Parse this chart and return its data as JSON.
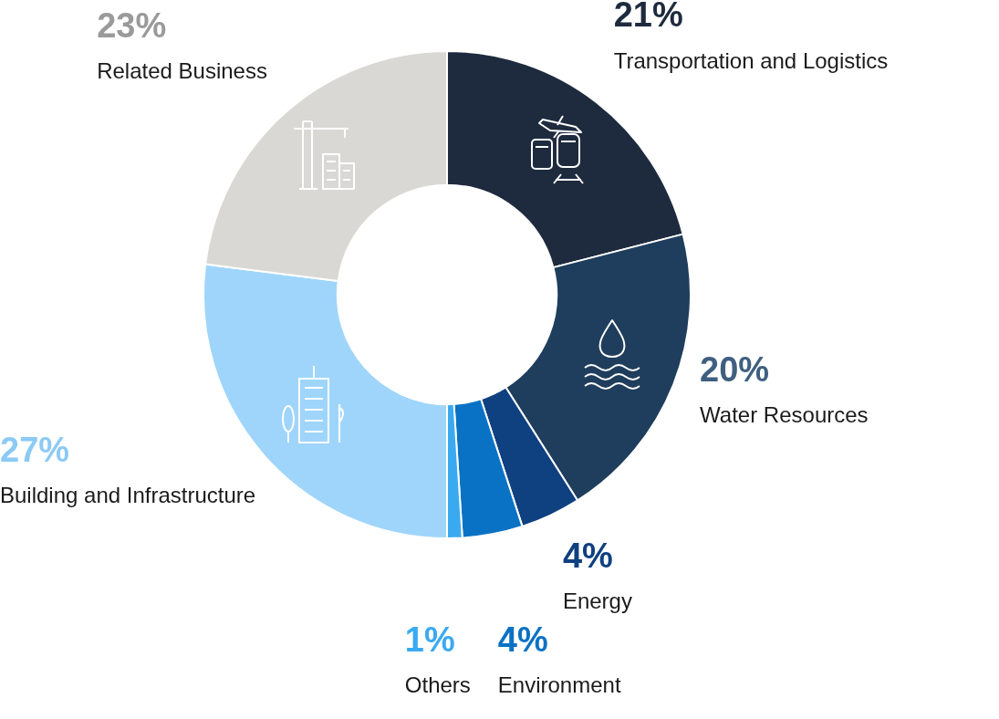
{
  "chart_data": {
    "type": "donut",
    "categories": [
      "Transportation and Logistics",
      "Water Resources",
      "Energy",
      "Environment",
      "Others",
      "Building and Infrastructure",
      "Related Business"
    ],
    "values": [
      21,
      20,
      4,
      4,
      1,
      27,
      23
    ],
    "colors": [
      "#1e2b3e",
      "#1f3d5c",
      "#0f4080",
      "#0a72c4",
      "#3aaaf0",
      "#9fd5fb",
      "#d9d8d4"
    ],
    "value_labels": [
      "21%",
      "20%",
      "4%",
      "4%",
      "1%",
      "27%",
      "23%"
    ],
    "legend": false
  }
}
